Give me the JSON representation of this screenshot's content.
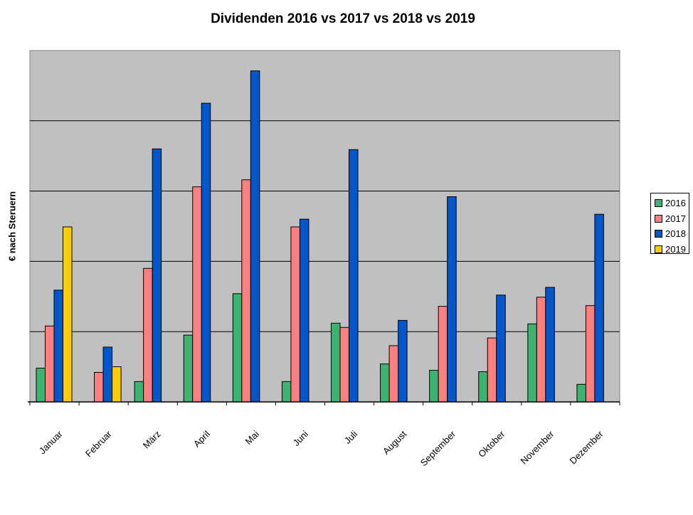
{
  "chart_data": {
    "type": "bar",
    "title": "Dividenden 2016 vs 2017 vs 2018 vs 2019",
    "ylabel": "€ nach Steruern",
    "xlabel": "",
    "ylim": [
      0,
      5
    ],
    "grid": true,
    "legend_position": "right",
    "plot_background": "#c0c0c0",
    "categories": [
      "Januar",
      "Februar",
      "März",
      "April",
      "Mai",
      "Juni",
      "Juli",
      "August",
      "September",
      "Oktober",
      "November",
      "Dezember"
    ],
    "series": [
      {
        "name": "2016",
        "color": "#3cb371",
        "values": [
          0.48,
          null,
          0.29,
          0.95,
          1.54,
          0.29,
          1.12,
          0.54,
          0.45,
          0.43,
          1.11,
          0.25
        ]
      },
      {
        "name": "2017",
        "color": "#ff7f7f",
        "values": [
          1.08,
          0.42,
          1.9,
          3.06,
          3.16,
          2.49,
          1.06,
          0.8,
          1.36,
          0.91,
          1.49,
          1.37
        ]
      },
      {
        "name": "2018",
        "color": "#0057cc",
        "values": [
          1.59,
          0.78,
          3.6,
          4.25,
          4.71,
          2.6,
          3.59,
          1.16,
          2.92,
          1.52,
          1.63,
          2.67
        ]
      },
      {
        "name": "2019",
        "color": "#ffcc00",
        "values": [
          2.49,
          0.5,
          null,
          null,
          null,
          null,
          null,
          null,
          null,
          null,
          null,
          null
        ]
      }
    ]
  }
}
